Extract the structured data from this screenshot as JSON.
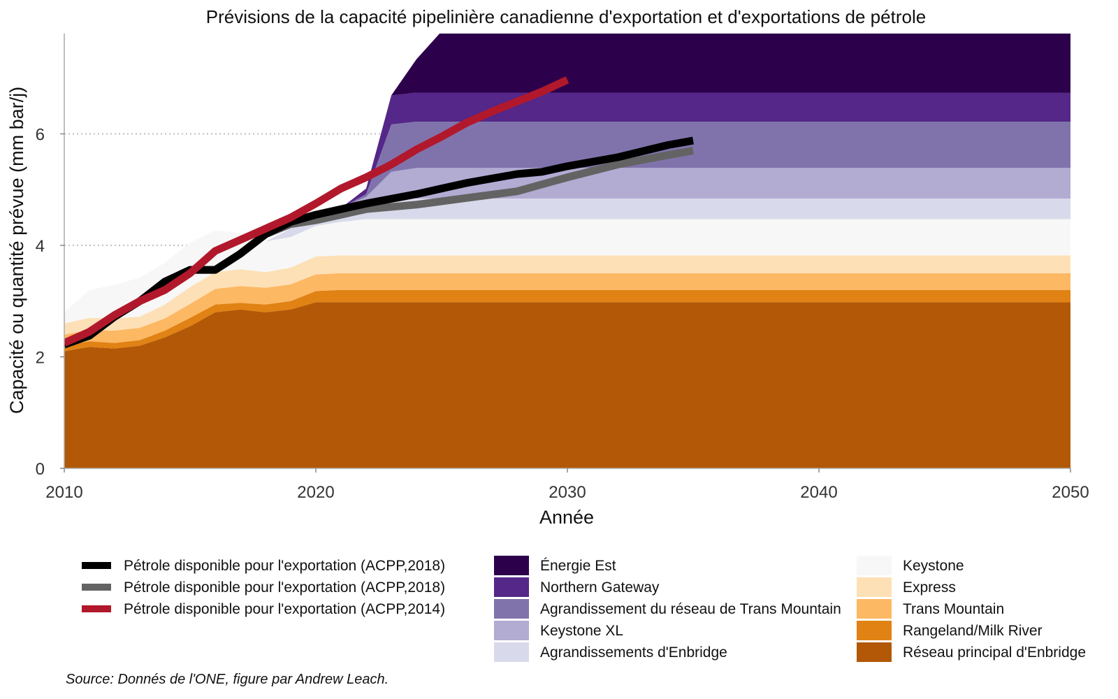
{
  "chart_data": {
    "type": "area",
    "title": "Prévisions de la capacité pipelinière canadienne d'exportation et d'exportations de pétrole",
    "xlabel": "Année",
    "ylabel": "Capacité ou quantité prévue (mm bar/j)",
    "xlim": [
      2010,
      2050
    ],
    "ylim": [
      0,
      7.8
    ],
    "x_ticks": [
      2010,
      2020,
      2030,
      2040,
      2050
    ],
    "y_ticks": [
      0,
      2,
      4,
      6
    ],
    "grid": "horizontal dotted at 4 and 6",
    "legend_placement": "bottom",
    "source": "Source: Donnés de l'ONE, figure par Andrew Leach.",
    "x": [
      2010,
      2011,
      2012,
      2013,
      2014,
      2015,
      2016,
      2017,
      2018,
      2019,
      2020,
      2021,
      2022,
      2023,
      2024,
      2025,
      2026,
      2028,
      2030,
      2050
    ],
    "stacked_series": [
      {
        "name": "Réseau principal d'Enbridge",
        "color": "#b35806",
        "values": [
          2.1,
          2.18,
          2.15,
          2.2,
          2.35,
          2.55,
          2.8,
          2.85,
          2.8,
          2.85,
          2.98,
          2.98,
          2.98,
          2.98,
          2.98,
          2.98,
          2.98,
          2.98,
          2.98,
          2.98
        ]
      },
      {
        "name": "Rangeland/Milk River",
        "color": "#e08214",
        "values": [
          0.1,
          0.1,
          0.1,
          0.1,
          0.12,
          0.15,
          0.14,
          0.12,
          0.14,
          0.15,
          0.2,
          0.22,
          0.22,
          0.22,
          0.22,
          0.22,
          0.22,
          0.22,
          0.22,
          0.22
        ]
      },
      {
        "name": "Trans Mountain",
        "color": "#fdb863",
        "values": [
          0.2,
          0.2,
          0.22,
          0.22,
          0.22,
          0.25,
          0.28,
          0.3,
          0.3,
          0.3,
          0.3,
          0.3,
          0.3,
          0.3,
          0.3,
          0.3,
          0.3,
          0.3,
          0.3,
          0.3
        ]
      },
      {
        "name": "Express",
        "color": "#fee0b6",
        "values": [
          0.2,
          0.22,
          0.22,
          0.2,
          0.25,
          0.3,
          0.3,
          0.3,
          0.28,
          0.3,
          0.32,
          0.32,
          0.32,
          0.32,
          0.32,
          0.32,
          0.32,
          0.32,
          0.32,
          0.32
        ]
      },
      {
        "name": "Keystone",
        "color": "#f7f7f7",
        "values": [
          0.2,
          0.5,
          0.6,
          0.7,
          0.75,
          0.8,
          0.75,
          0.65,
          0.55,
          0.55,
          0.55,
          0.6,
          0.65,
          0.65,
          0.65,
          0.65,
          0.65,
          0.65,
          0.65,
          0.65
        ]
      },
      {
        "name": "Agrandissements d'Enbridge",
        "color": "#d8daeb",
        "values": [
          0,
          0,
          0,
          0,
          0,
          0,
          0,
          0,
          0,
          0.15,
          0.15,
          0.25,
          0.35,
          0.37,
          0.37,
          0.37,
          0.37,
          0.37,
          0.37,
          0.37
        ]
      },
      {
        "name": "Keystone XL",
        "color": "#b2abd2",
        "values": [
          0,
          0,
          0,
          0,
          0,
          0,
          0,
          0,
          0,
          0,
          0,
          0,
          0.05,
          0.48,
          0.55,
          0.55,
          0.55,
          0.55,
          0.55,
          0.55
        ]
      },
      {
        "name": "Agrandissement du réseau de Trans Mountain",
        "color": "#8073ac",
        "values": [
          0,
          0,
          0,
          0,
          0,
          0,
          0,
          0,
          0,
          0,
          0,
          0,
          0.05,
          0.85,
          0.83,
          0.83,
          0.83,
          0.83,
          0.83,
          0.83
        ]
      },
      {
        "name": "Northern Gateway",
        "color": "#542788",
        "values": [
          0,
          0,
          0,
          0,
          0,
          0,
          0,
          0,
          0,
          0,
          0,
          0,
          0.1,
          0.52,
          0.52,
          0.52,
          0.52,
          0.52,
          0.52,
          0.52
        ]
      },
      {
        "name": "Énergie Est",
        "color": "#2d004b",
        "values": [
          0,
          0,
          0,
          0,
          0,
          0,
          0,
          0,
          0,
          0,
          0,
          0,
          0,
          0,
          0.6,
          1.1,
          1.1,
          1.1,
          1.1,
          1.1
        ]
      }
    ],
    "line_series": [
      {
        "name": "Pétrole disponible pour l'exportation (ACPP,2018)",
        "color": "#000000",
        "x": [
          2010,
          2011,
          2012,
          2013,
          2014,
          2015,
          2016,
          2017,
          2018,
          2019,
          2020,
          2021,
          2022,
          2024,
          2026,
          2028,
          2029,
          2030,
          2032,
          2034,
          2035
        ],
        "y": [
          2.22,
          2.38,
          2.72,
          3.0,
          3.35,
          3.56,
          3.56,
          3.85,
          4.2,
          4.42,
          4.55,
          4.65,
          4.75,
          4.92,
          5.12,
          5.28,
          5.32,
          5.42,
          5.58,
          5.8,
          5.88
        ]
      },
      {
        "name": "Pétrole disponible pour l'exportation (ACPP,2018)",
        "color": "#636363",
        "x": [
          2010,
          2011,
          2012,
          2013,
          2014,
          2015,
          2016,
          2017,
          2018,
          2019,
          2020,
          2021,
          2022,
          2024,
          2026,
          2028,
          2030,
          2032,
          2034,
          2035
        ],
        "y": [
          2.22,
          2.38,
          2.72,
          3.0,
          3.35,
          3.56,
          3.56,
          3.85,
          4.2,
          4.38,
          4.45,
          4.55,
          4.65,
          4.73,
          4.85,
          4.97,
          5.22,
          5.45,
          5.62,
          5.7
        ]
      },
      {
        "name": "Pétrole disponible pour l'exportation (ACPP,2014)",
        "color": "#b2182b",
        "x": [
          2010,
          2011,
          2012,
          2013,
          2014,
          2015,
          2016,
          2017,
          2018,
          2019,
          2020,
          2021,
          2022,
          2023,
          2024,
          2025,
          2026,
          2027,
          2028,
          2029,
          2030
        ],
        "y": [
          2.25,
          2.45,
          2.75,
          3.0,
          3.2,
          3.5,
          3.9,
          4.1,
          4.3,
          4.5,
          4.75,
          5.02,
          5.22,
          5.45,
          5.72,
          5.95,
          6.2,
          6.4,
          6.58,
          6.76,
          6.97
        ]
      }
    ]
  }
}
